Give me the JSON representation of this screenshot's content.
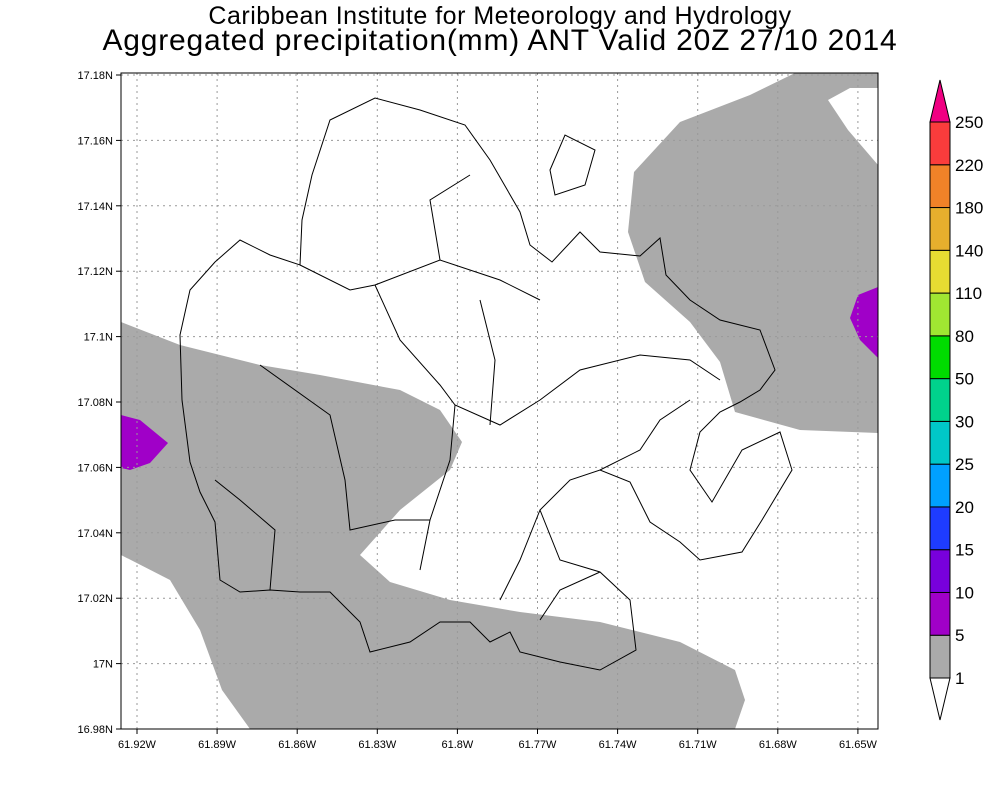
{
  "title": {
    "line1": "Caribbean Institute for Meteorology and Hydrology",
    "line2": "Aggregated precipitation(mm) ANT Valid 20Z 27/10 2014"
  },
  "axes": {
    "lat_ticks": [
      "17.18N",
      "17.16N",
      "17.14N",
      "17.12N",
      "17.1N",
      "17.08N",
      "17.06N",
      "17.04N",
      "17.02N",
      "17N",
      "16.98N"
    ],
    "lon_ticks": [
      "61.92W",
      "61.89W",
      "61.86W",
      "61.83W",
      "61.8W",
      "61.77W",
      "61.74W",
      "61.71W",
      "61.68W",
      "61.65W"
    ]
  },
  "colorbar": {
    "levels": [
      "1",
      "5",
      "10",
      "15",
      "20",
      "25",
      "30",
      "50",
      "80",
      "110",
      "140",
      "180",
      "220",
      "250"
    ],
    "colors": [
      "#ffffff",
      "#aaaaaa",
      "#a000c8",
      "#7800dc",
      "#1e3cff",
      "#00a0ff",
      "#00c8c8",
      "#00d28c",
      "#00dc00",
      "#a0e632",
      "#e6dc32",
      "#e6af2d",
      "#f08228",
      "#fa3c3c",
      "#f00082"
    ]
  }
}
